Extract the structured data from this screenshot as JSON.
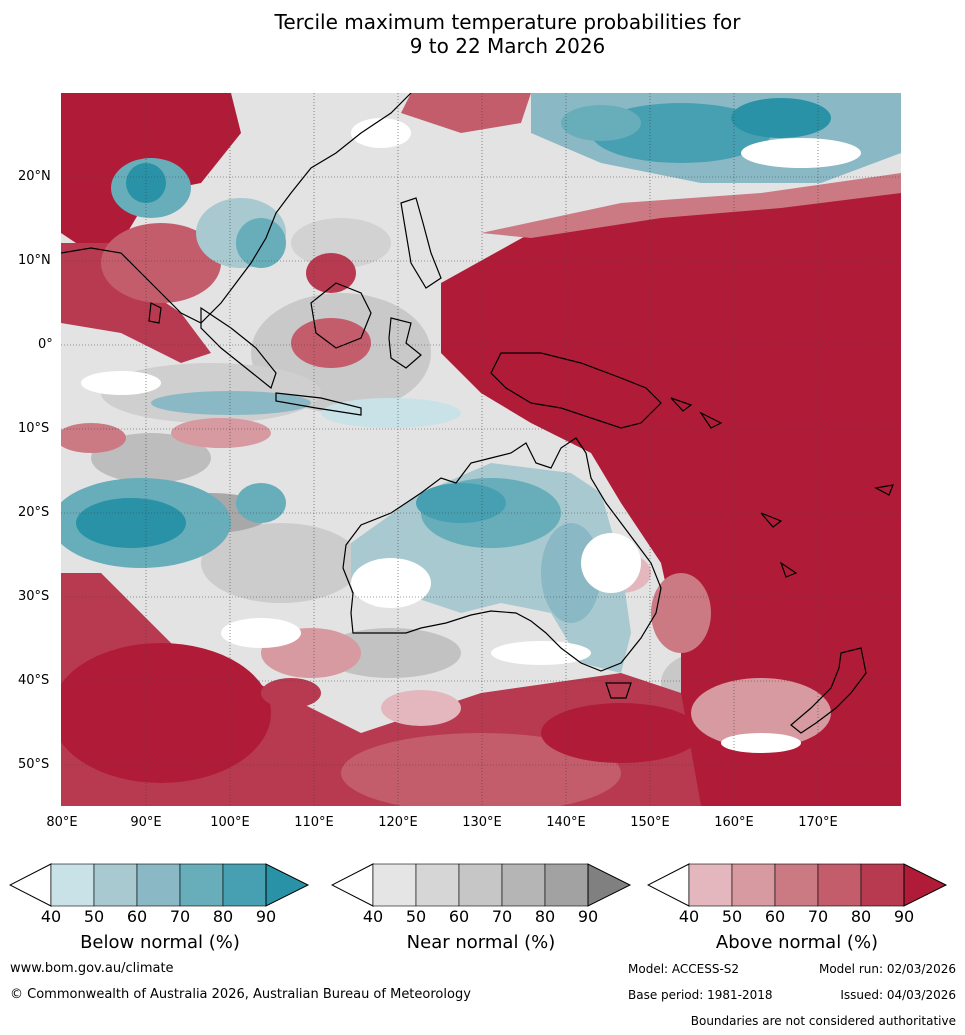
{
  "title": {
    "line1": "Tercile maximum temperature probabilities for",
    "line2": "9 to 22 March 2026"
  },
  "map": {
    "lat_labels": [
      "20°N",
      "10°N",
      "0°",
      "10°S",
      "20°S",
      "30°S",
      "40°S",
      "50°S"
    ],
    "lon_labels": [
      "80°E",
      "90°E",
      "100°E",
      "110°E",
      "120°E",
      "130°E",
      "140°E",
      "150°E",
      "160°E",
      "170°E"
    ],
    "lon_range": [
      80,
      180
    ],
    "lat_range": [
      -55,
      30
    ]
  },
  "legends": [
    {
      "title": "Below normal (%)",
      "ticks": [
        "40",
        "50",
        "60",
        "70",
        "80",
        "90"
      ],
      "colors": [
        "#ffffff",
        "#c9e2e8",
        "#a8c9cf",
        "#8ab8c5",
        "#68adba",
        "#479fb2",
        "#2a92a6"
      ]
    },
    {
      "title": "Near normal (%)",
      "ticks": [
        "40",
        "50",
        "60",
        "70",
        "80",
        "90"
      ],
      "colors": [
        "#ffffff",
        "#e5e5e5",
        "#d6d6d6",
        "#c6c6c6",
        "#b5b5b5",
        "#a2a2a2",
        "#808080"
      ]
    },
    {
      "title": "Above normal (%)",
      "ticks": [
        "40",
        "50",
        "60",
        "70",
        "80",
        "90"
      ],
      "colors": [
        "#ffffff",
        "#e3b7bd",
        "#d69aa0",
        "#cb7a84",
        "#c35d6c",
        "#b83a50",
        "#b01c38"
      ]
    }
  ],
  "footer": {
    "website": "www.bom.gov.au/climate",
    "copyright": "© Commonwealth of Australia 2026, Australian Bureau of Meteorology",
    "model": "Model: ACCESS-S2",
    "model_run": "Model run: 02/03/2026",
    "base_period": "Base period: 1981-2018",
    "issued": "Issued: 04/03/2026",
    "disclaimer": "Boundaries are not considered authoritative"
  }
}
